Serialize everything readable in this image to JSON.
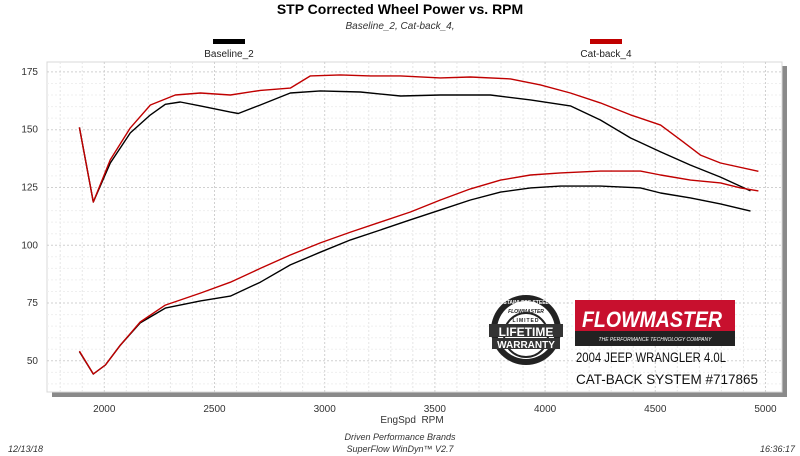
{
  "chart_data": {
    "type": "line",
    "title": "STP Corrected Wheel Power vs. RPM",
    "subtitle": "Baseline_2, Cat-back_4,",
    "xlabel": "EngSpd  RPM",
    "ylabel": "",
    "xlim": [
      1740,
      5075
    ],
    "ylim": [
      36.5,
      179.3
    ],
    "x_ticks": [
      2000,
      2500,
      3000,
      3500,
      4000,
      4500,
      5000
    ],
    "y_ticks": [
      50,
      75,
      100,
      125,
      150,
      175
    ],
    "grid": true,
    "legend_placement": "top",
    "series": [
      {
        "name": "Baseline_2",
        "color": "#000000",
        "lines": [
          {
            "x": [
              1887,
              1950,
              2027,
              2118,
              2209,
              2277,
              2345,
              2436,
              2572,
              2608,
              2708,
              2844,
              2980,
              3162,
              3344,
              3525,
              3752,
              3934,
              4115,
              4251,
              4388,
              4524,
              4660,
              4796,
              4932
            ],
            "y": [
              151,
              118.7,
              135.6,
              148.6,
              156.4,
              161,
              162,
              160.3,
              157.6,
              157,
              160.7,
              165.9,
              166.8,
              166.3,
              164.6,
              165,
              165,
              162.9,
              160.3,
              154.2,
              146.4,
              140.4,
              134.7,
              129.5,
              123.5
            ]
          },
          {
            "x": [
              1887,
              1950,
              2005,
              2073,
              2163,
              2277,
              2436,
              2572,
              2708,
              2844,
              2980,
              3117,
              3253,
              3389,
              3525,
              3661,
              3798,
              3934,
              4070,
              4251,
              4433,
              4524,
              4660,
              4796,
              4932
            ],
            "y": [
              54,
              44.3,
              48.2,
              56.8,
              66.4,
              72.8,
              75.9,
              78,
              84,
              91.5,
              97,
              102.3,
              106.6,
              111,
              115.3,
              119.6,
              123,
              124.8,
              125.6,
              125.6,
              124.8,
              122.6,
              120.5,
              117.9,
              114.8
            ]
          }
        ]
      },
      {
        "name": "Cat-back_4",
        "color": "#c00000",
        "lines": [
          {
            "x": [
              1887,
              1950,
              2027,
              2118,
              2209,
              2322,
              2436,
              2572,
              2708,
              2844,
              2935,
              3071,
              3207,
              3344,
              3525,
              3661,
              3843,
              3979,
              4115,
              4251,
              4388,
              4524,
              4615,
              4705,
              4796,
              4968
            ],
            "y": [
              151,
              118.7,
              137,
              150.8,
              160.7,
              165,
              165.9,
              165,
              167,
              168,
              173.3,
              173.7,
              173.3,
              173.3,
              172.4,
              172.8,
              172,
              169.4,
              165.9,
              161.6,
              156.4,
              152,
              145.6,
              139,
              135.6,
              132
            ]
          },
          {
            "x": [
              1887,
              1950,
              2005,
              2073,
              2163,
              2277,
              2436,
              2572,
              2708,
              2844,
              2980,
              3117,
              3253,
              3389,
              3525,
              3661,
              3798,
              3934,
              4070,
              4251,
              4433,
              4524,
              4660,
              4796,
              4887,
              4968
            ],
            "y": [
              54.2,
              44.3,
              48.2,
              56.8,
              66.8,
              74.1,
              79.3,
              84,
              90,
              95.8,
              101,
              105.7,
              110,
              114.4,
              119.6,
              124.4,
              128.2,
              130.4,
              131.3,
              132.1,
              132.1,
              130.4,
              128.2,
              127,
              124.8,
              123.5
            ]
          }
        ]
      }
    ]
  },
  "footer": {
    "date": "12/13/18",
    "time": "16:36:17",
    "company": "Driven Performance Brands",
    "software": "SuperFlow WinDyn™ V2.7"
  },
  "overlay": {
    "brand": "FLOWMASTER",
    "brand_tagline": "THE PERFORMANCE TECHNOLOGY COMPANY",
    "vehicle": "2004 JEEP WRANGLER 4.0L",
    "product": "CAT-BACK SYSTEM #717865",
    "badge_top": "STAINLESS STEEL",
    "badge_brand": "FLOWMASTER",
    "badge_limited": "LIMITED",
    "badge_line1": "LIFETIME",
    "badge_line2": "WARRANTY"
  }
}
